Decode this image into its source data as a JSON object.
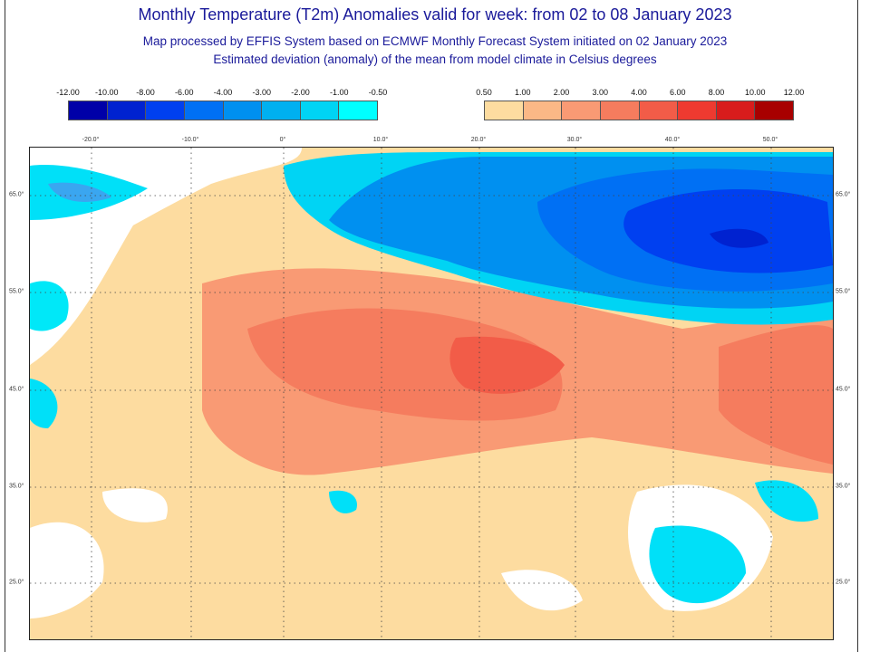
{
  "header": {
    "title": "Monthly Temperature (T2m) Anomalies valid for week: from 02 to 08 January 2023",
    "subtitle1": "Map processed by EFFIS System based on ECMWF Monthly Forecast System initiated on 02 January 2023",
    "subtitle2": "Estimated deviation (anomaly) of the mean from model climate in Celsius degrees"
  },
  "legend_negative": {
    "labels": [
      "-12.00",
      "-10.00",
      "-8.00",
      "-6.00",
      "-4.00",
      "-3.00",
      "-2.00",
      "-1.00",
      "-0.50"
    ],
    "colors": [
      "#0000a8",
      "#0022d0",
      "#0040f0",
      "#0070f4",
      "#0090f0",
      "#00b0f0",
      "#00d4f4",
      "#00ffff"
    ]
  },
  "legend_positive": {
    "labels": [
      "0.50",
      "1.00",
      "2.00",
      "3.00",
      "4.00",
      "6.00",
      "8.00",
      "10.00",
      "12.00"
    ],
    "colors": [
      "#fddca0",
      "#fbb886",
      "#f99a74",
      "#f57c5e",
      "#f25c48",
      "#ee3a30",
      "#d81c1c",
      "#a80000"
    ]
  },
  "map": {
    "lon_labels": [
      "-20.0°",
      "-10.0°",
      "0°",
      "10.0°",
      "20.0°",
      "30.0°",
      "40.0°",
      "50.0°"
    ],
    "lat_labels": [
      "65.0°",
      "55.0°",
      "45.0°",
      "35.0°",
      "25.0°"
    ]
  }
}
